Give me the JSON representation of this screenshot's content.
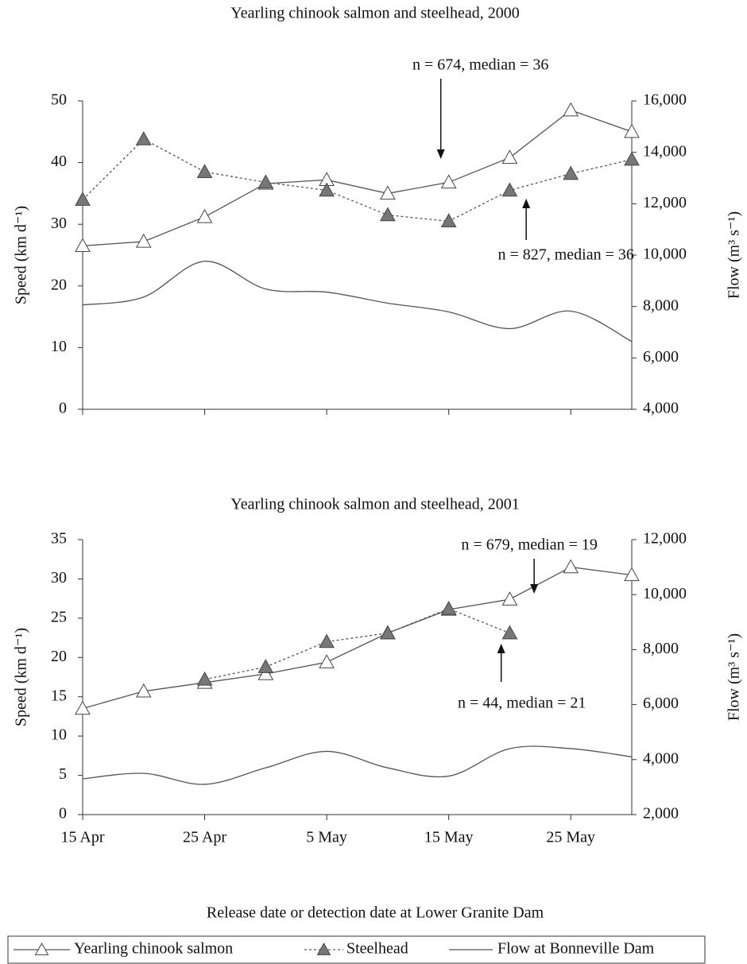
{
  "chart_data": [
    {
      "type": "line",
      "title": "Yearling chinook salmon and steelhead, 2000",
      "y_label": "Speed (km d⁻¹)",
      "y2_label": "Flow (m³ s⁻¹)",
      "categories": [
        null,
        null,
        null,
        null,
        null,
        null,
        null,
        null,
        null,
        null
      ],
      "ylim": [
        0,
        50
      ],
      "yticks": [
        0,
        10,
        20,
        30,
        40,
        50
      ],
      "y2lim": [
        4000,
        16000
      ],
      "y2ticks": [
        {
          "value": 4000,
          "label": "4,000"
        },
        {
          "value": 6000,
          "label": "6,000"
        },
        {
          "value": 8000,
          "label": "8,000"
        },
        {
          "value": 10000,
          "label": "10,000"
        },
        {
          "value": 12000,
          "label": "12,000"
        },
        {
          "value": 14000,
          "label": "14,000"
        },
        {
          "value": 16000,
          "label": "16,000"
        }
      ],
      "grid": false,
      "series": [
        {
          "name": "Yearling chinook salmon",
          "color": "#555555",
          "style": "solid",
          "marker": "open-triangle",
          "values": [
            26.5,
            27.2,
            31.2,
            36.6,
            37.2,
            35,
            36.8,
            40.8,
            48.5,
            45
          ]
        },
        {
          "name": "Steelhead",
          "color": "#555555",
          "style": "dotted",
          "marker": "filled-triangle",
          "values": [
            34,
            43.8,
            38.5,
            36.8,
            35.5,
            31.5,
            30.5,
            35.5,
            38.2,
            40.5
          ]
        },
        {
          "name": "Flow at Bonneville Dam",
          "color": "#555555",
          "style": "smooth",
          "axis": "y2",
          "values": [
            8060,
            8370,
            9760,
            8680,
            8560,
            8130,
            7790,
            7140,
            7820,
            6640
          ]
        }
      ],
      "annotations": [
        {
          "text": "n = 674, median = 36",
          "at": 5.87,
          "direction": "down"
        },
        {
          "text": "n = 827, median = 36",
          "at": 7.27,
          "direction": "up"
        }
      ]
    },
    {
      "type": "line",
      "title": "Yearling chinook salmon and steelhead, 2001",
      "y_label": "Speed (km d⁻¹)",
      "y2_label": "Flow (m³ s⁻¹)",
      "x_label": "Release date or detection date at Lower Granite Dam",
      "categories": [
        "15 Apr",
        null,
        "25 Apr",
        null,
        "5 May",
        null,
        "15 May",
        null,
        "25 May",
        null
      ],
      "ylim": [
        0,
        35
      ],
      "yticks": [
        0,
        5,
        10,
        15,
        20,
        25,
        30,
        35
      ],
      "y2lim": [
        2000,
        12000
      ],
      "y2ticks": [
        {
          "value": 2000,
          "label": "2,000"
        },
        {
          "value": 4000,
          "label": "4,000"
        },
        {
          "value": 6000,
          "label": "6,000"
        },
        {
          "value": 8000,
          "label": "8,000"
        },
        {
          "value": 10000,
          "label": "10,000"
        },
        {
          "value": 12000,
          "label": "12,000"
        }
      ],
      "grid": false,
      "series": [
        {
          "name": "Yearling chinook salmon",
          "color": "#555555",
          "style": "solid",
          "marker": "open-triangle",
          "values": [
            13.5,
            15.7,
            16.8,
            17.9,
            19.4,
            23.1,
            26.1,
            27.4,
            31.5,
            30.5
          ]
        },
        {
          "name": "Steelhead",
          "color": "#555555",
          "style": "dotted",
          "marker": "filled-triangle",
          "values": [
            null,
            null,
            17.2,
            18.8,
            22,
            23.1,
            26.2,
            23.1,
            null,
            null
          ]
        },
        {
          "name": "Flow at Bonneville Dam",
          "color": "#555555",
          "style": "smooth",
          "axis": "y2",
          "values": [
            3300,
            3500,
            3100,
            3700,
            4300,
            3700,
            3400,
            4400,
            4400,
            4100
          ]
        }
      ],
      "annotations": [
        {
          "text": "n = 679, median = 19",
          "at": 7.4,
          "direction": "down"
        },
        {
          "text": "n = 44, median = 21",
          "at": 6.86,
          "direction": "up"
        }
      ]
    }
  ]
}
